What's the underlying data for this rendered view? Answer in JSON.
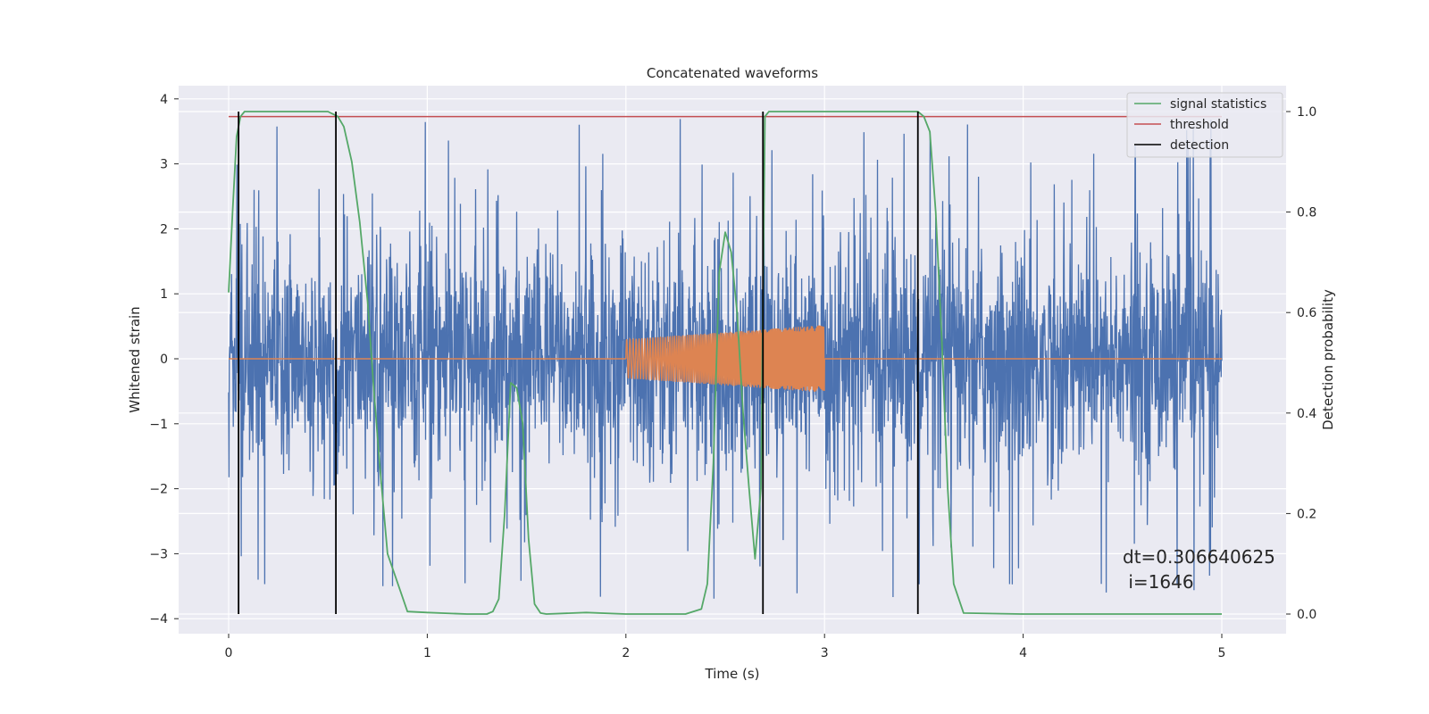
{
  "chart_data": {
    "type": "line",
    "title": "Concatenated waveforms",
    "xlabel": "Time (s)",
    "ylabel": "Whitened strain",
    "y2label": "Detection probability",
    "xlim": [
      -0.24,
      5.35
    ],
    "ylim": [
      -4.3,
      4.2
    ],
    "y2lim": [
      -0.05,
      1.035
    ],
    "xticks": [
      "0",
      "1",
      "2",
      "3",
      "4",
      "5"
    ],
    "yticks": [
      "−4",
      "−3",
      "−2",
      "−1",
      "0",
      "1",
      "2",
      "3",
      "4"
    ],
    "y2ticks": [
      "0.0",
      "0.2",
      "0.4",
      "0.6",
      "0.8",
      "1.0"
    ],
    "grid": true,
    "legend_position": "top-right",
    "legend": [
      {
        "label": "signal statistics",
        "color": "#55a868"
      },
      {
        "label": "threshold",
        "color": "#c44e52"
      },
      {
        "label": "detection",
        "color": "#000000"
      }
    ],
    "series": [
      {
        "name": "whitened strain",
        "axis": "left",
        "color": "#4c72b0",
        "description": "noise trace sampled from 0 to 5 s, amplitude roughly ±2 with spikes to about ±3.8"
      },
      {
        "name": "injected chirp",
        "axis": "left",
        "color": "#dd8452",
        "x_range": [
          2.0,
          3.0
        ],
        "amplitude_start": 0.3,
        "amplitude_end": 0.52
      },
      {
        "name": "signal statistics",
        "axis": "right",
        "color": "#55a868",
        "x": [
          0.0,
          0.02,
          0.04,
          0.06,
          0.08,
          0.1,
          0.15,
          0.3,
          0.45,
          0.5,
          0.55,
          0.58,
          0.62,
          0.66,
          0.7,
          0.73,
          0.76,
          0.8,
          0.9,
          1.0,
          1.2,
          1.3,
          1.33,
          1.36,
          1.39,
          1.42,
          1.45,
          1.48,
          1.51,
          1.54,
          1.57,
          1.6,
          1.8,
          2.0,
          2.3,
          2.38,
          2.41,
          2.44,
          2.47,
          2.5,
          2.53,
          2.56,
          2.59,
          2.62,
          2.65,
          2.68,
          2.7,
          2.72,
          2.75,
          2.8,
          3.0,
          3.2,
          3.4,
          3.47,
          3.5,
          3.53,
          3.56,
          3.59,
          3.62,
          3.65,
          3.7,
          4.0,
          4.5,
          5.0
        ],
        "y": [
          0.64,
          0.8,
          0.95,
          0.99,
          1.0,
          1.0,
          1.0,
          1.0,
          1.0,
          1.0,
          0.99,
          0.97,
          0.9,
          0.78,
          0.62,
          0.45,
          0.3,
          0.12,
          0.005,
          0.003,
          0.0,
          0.0,
          0.005,
          0.03,
          0.2,
          0.46,
          0.45,
          0.38,
          0.15,
          0.02,
          0.002,
          0.0,
          0.003,
          0.0,
          0.0,
          0.01,
          0.06,
          0.3,
          0.68,
          0.76,
          0.72,
          0.6,
          0.4,
          0.25,
          0.11,
          0.25,
          0.99,
          1.0,
          1.0,
          1.0,
          1.0,
          1.0,
          1.0,
          1.0,
          0.99,
          0.96,
          0.8,
          0.55,
          0.25,
          0.06,
          0.002,
          0.0,
          0.0,
          0.0
        ]
      },
      {
        "name": "threshold",
        "axis": "right",
        "color": "#c44e52",
        "value": 0.99
      }
    ],
    "detections": [
      0.05,
      0.54,
      2.69,
      3.47
    ],
    "annotation": {
      "line1": "dt=0.306640625",
      "line2": " i=1646"
    },
    "colors": {
      "plot_background": "#eaeaf2",
      "grid": "#ffffff",
      "text": "#262626"
    }
  }
}
